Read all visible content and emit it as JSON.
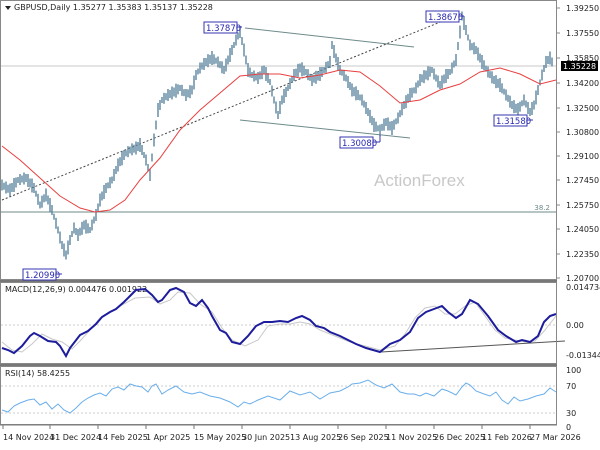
{
  "header": {
    "symbol": "GBPUSD,Daily",
    "ohlc": "1.35277 1.35383 1.35137 1.35228",
    "title_full": "GBPUSD,Daily  1.35277 1.35383 1.35137 1.35228"
  },
  "watermark": "ActionForex",
  "price_axis": {
    "ticks": [
      "1.39250",
      "1.37550",
      "1.35850",
      "1.34200",
      "1.32500",
      "1.30800",
      "1.29100",
      "1.27450",
      "1.25750",
      "1.24050",
      "1.22350",
      "1.20700"
    ],
    "current_price": "1.35228"
  },
  "fib_label": "38.2",
  "callouts": [
    {
      "text": "1.37870"
    },
    {
      "text": "1.38670"
    },
    {
      "text": "1.30080"
    },
    {
      "text": "1.31580"
    },
    {
      "text": "1.20990"
    }
  ],
  "macd": {
    "label": "MACD(12,26,9) 0.004476 0.001922",
    "axis": [
      "0.014734",
      "0.00",
      "-0.013442"
    ]
  },
  "rsi": {
    "label": "RSI(14) 58.4255",
    "axis": [
      "100",
      "70",
      "30",
      "0"
    ]
  },
  "time_axis": [
    "14 Nov 2024",
    "31 Dec 2024",
    "14 Feb 2025",
    "1 Apr 2025",
    "15 May 2025",
    "30 Jun 2025",
    "13 Aug 2025",
    "26 Sep 2025",
    "11 Nov 2025",
    "26 Dec 2025",
    "11 Feb 2026",
    "27 Mar 2026"
  ],
  "colors": {
    "candles": "#5b86a0",
    "ma": "#e84040",
    "macd_line": "#1c1c9c",
    "signal_line": "#c8c8c8",
    "rsi_line": "#6aaeea",
    "channel": "#6e8a8a",
    "callout_border": "#3434b0"
  },
  "chart_data": [
    {
      "type": "line",
      "title": "GBPUSD,Daily",
      "subtitle": "1.35277 1.35383 1.35137 1.35228",
      "xlabel": "",
      "ylabel": "",
      "ylim": [
        1.2,
        1.399
      ],
      "x": [
        "14 Nov 2024",
        "31 Dec 2024",
        "14 Feb 2025",
        "1 Apr 2025",
        "15 May 2025",
        "30 Jun 2025",
        "13 Aug 2025",
        "26 Sep 2025",
        "11 Nov 2025",
        "26 Dec 2025",
        "11 Feb 2026",
        "27 Mar 2026"
      ],
      "series": [
        {
          "name": "GBPUSD close (approx)",
          "values": [
            1.268,
            1.228,
            1.245,
            1.292,
            1.34,
            1.365,
            1.35,
            1.345,
            1.31,
            1.365,
            1.35,
            1.352
          ]
        },
        {
          "name": "Moving average (approx)",
          "values": [
            1.293,
            1.262,
            1.255,
            1.285,
            1.322,
            1.345,
            1.34,
            1.345,
            1.33,
            1.34,
            1.352,
            1.345
          ]
        }
      ],
      "annotations": [
        "1.37870 (high)",
        "1.38670 (high)",
        "1.30080 (low)",
        "1.31580 (low)",
        "1.20990 (low)",
        "38.2 fib level at ~1.2575",
        "Current price 1.35228"
      ],
      "grid": false
    },
    {
      "type": "line",
      "title": "MACD(12,26,9) 0.004476 0.001922",
      "ylim": [
        -0.013442,
        0.014734
      ],
      "series": [
        {
          "name": "MACD",
          "values": [
            -0.008,
            -0.012,
            -0.002,
            -0.011,
            0.005,
            0.012,
            0.003,
            -0.007,
            -0.012,
            0.01,
            -0.005,
            0.0045
          ]
        },
        {
          "name": "Signal",
          "values": [
            -0.006,
            -0.01,
            -0.003,
            -0.009,
            0.003,
            0.011,
            0.004,
            -0.005,
            -0.01,
            0.009,
            -0.006,
            0.0019
          ]
        }
      ]
    },
    {
      "type": "line",
      "title": "RSI(14) 58.4255",
      "ylim": [
        0,
        100
      ],
      "series": [
        {
          "name": "RSI",
          "values": [
            38,
            45,
            40,
            35,
            55,
            65,
            58,
            50,
            38,
            62,
            45,
            58.4
          ]
        }
      ],
      "annotations": [
        "levels 70 and 30"
      ]
    }
  ]
}
